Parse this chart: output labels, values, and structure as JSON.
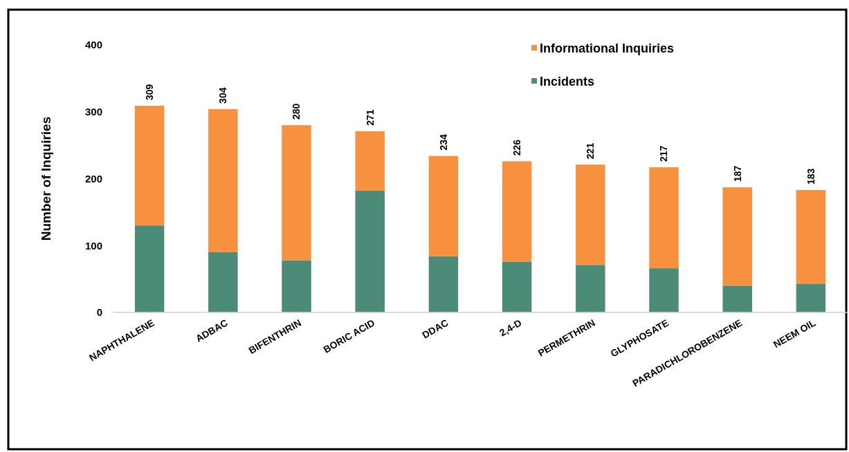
{
  "chart_data": {
    "type": "bar",
    "ylabel": "Number of Inquiries",
    "stacked": true,
    "categories": [
      "NAPHTHALENE",
      "ADBAC",
      "BIFENTHRIN",
      "BORIC ACID",
      "DDAC",
      "2,4-D",
      "PERMETHRIN",
      "GLYPHOSATE",
      "PARADICHLOROBENZENE",
      "NEEM OIL"
    ],
    "series": [
      {
        "name": "Incidents",
        "color": "#4b8b78",
        "values": [
          130,
          90,
          78,
          182,
          84,
          76,
          71,
          66,
          40,
          43
        ]
      },
      {
        "name": "Informational Inquiries",
        "color": "#f7913f",
        "values": [
          179,
          214,
          202,
          89,
          150,
          150,
          150,
          151,
          147,
          140
        ]
      }
    ],
    "totals": [
      "309",
      "304",
      "280",
      "271",
      "234",
      "226",
      "221",
      "217",
      "187",
      "183"
    ],
    "ylim": [
      0,
      400
    ],
    "yticks": [
      0,
      100,
      200,
      300,
      400
    ],
    "grid": false,
    "legend": "top right"
  }
}
